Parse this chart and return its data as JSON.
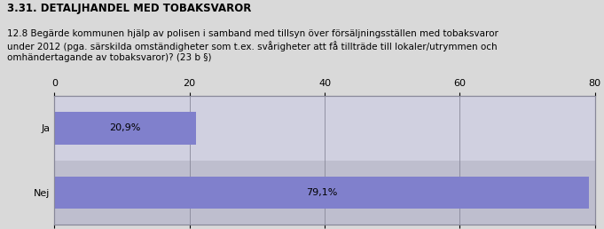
{
  "title": "3.31. DETALJHANDEL MED TOBAKSVAROR",
  "subtitle": "12.8 Begärde kommunen hjälp av polisen i samband med tillsyn över försäljningsställen med tobaksvaror\nunder 2012 (pga. särskilda omständigheter som t.ex. svårigheter att få tillträde till lokaler/utrymmen och\nomhändertagande av tobaksvaror)? (23 b §)",
  "categories": [
    "Ja",
    "Nej"
  ],
  "values": [
    20.9,
    79.1
  ],
  "labels": [
    "20,9%",
    "79,1%"
  ],
  "bar_color": "#8080cc",
  "header_bg": "#d9d9d9",
  "plot_bg": "#c8c8d8",
  "row_bg_light": "#d0d0e0",
  "row_bg_dark": "#bebece",
  "xlim": [
    0,
    80
  ],
  "xticks": [
    0,
    20,
    40,
    60,
    80
  ],
  "title_fontsize": 8.5,
  "subtitle_fontsize": 7.5,
  "bar_label_fontsize": 8,
  "tick_fontsize": 8,
  "figsize": [
    6.81,
    2.58
  ],
  "dpi": 100
}
